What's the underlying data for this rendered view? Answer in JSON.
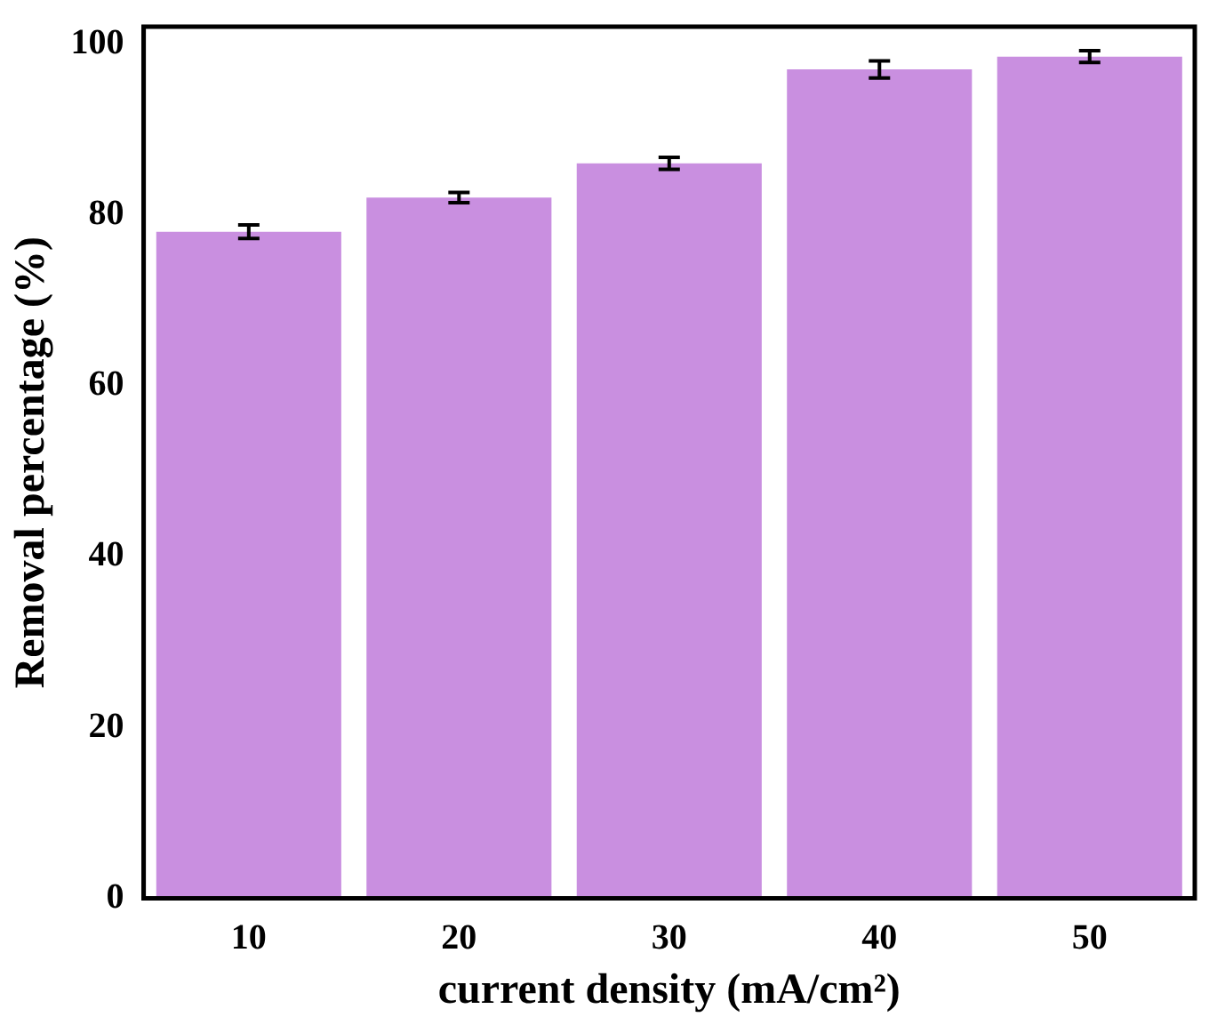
{
  "chart_data": {
    "type": "bar",
    "xlabel": "current density (mA/cm²)",
    "ylabel": "Removal percentage (%)",
    "categories": [
      "10",
      "20",
      "30",
      "40",
      "50"
    ],
    "values": [
      78,
      82,
      86,
      97,
      98.5
    ],
    "errors": [
      0.8,
      0.6,
      0.7,
      1.0,
      0.7
    ],
    "color": "#c98fe0",
    "ylim": [
      0,
      102
    ],
    "yticks": [
      0,
      20,
      40,
      60,
      80,
      100
    ],
    "grid": false,
    "legend": false
  }
}
